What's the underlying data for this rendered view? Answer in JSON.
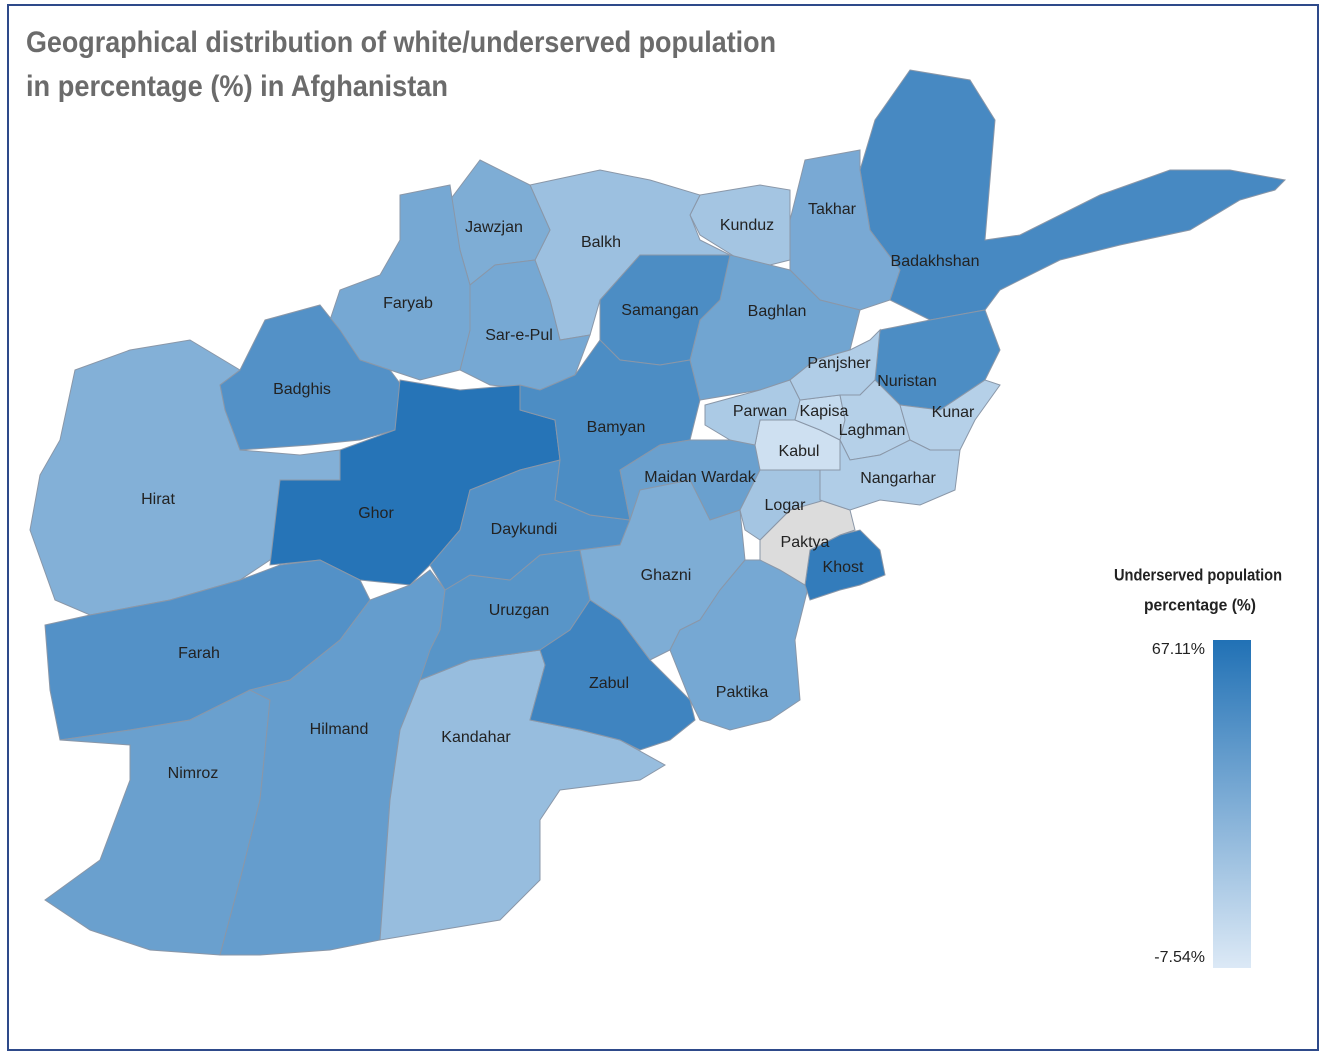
{
  "chart_data": {
    "type": "choropleth",
    "title": [
      "Geographical distribution of white/underserved population",
      "in percentage (%) in Afghanistan"
    ],
    "categories": [
      "Badakhshan",
      "Nuristan",
      "Takhar",
      "Kunduz",
      "Baghlan",
      "Balkh",
      "Jawzjan",
      "Samangan",
      "Sar-e-Pul",
      "Faryab",
      "Badghis",
      "Hirat",
      "Ghor",
      "Farah",
      "Nimroz",
      "Hilmand",
      "Kandahar",
      "Uruzgan",
      "Daykundi",
      "Bamyan",
      "Maidan Wardak",
      "Ghazni",
      "Zabul",
      "Paktika",
      "Khost",
      "Paktya",
      "Logar",
      "Kabul",
      "Parwan",
      "Kapisa",
      "Panjsher",
      "Laghman",
      "Kunar",
      "Nangarhar"
    ],
    "values": [
      52,
      50,
      32,
      15,
      35,
      18,
      30,
      50,
      33,
      33,
      47,
      28,
      65,
      47,
      38,
      40,
      20,
      45,
      47,
      50,
      38,
      30,
      55,
      33,
      60,
      null,
      15,
      -2,
      12,
      2,
      10,
      8,
      8,
      10
    ],
    "colorscale": [
      "#dce9f6",
      "#2171b5"
    ],
    "missing_color": "#dcdcdc",
    "legend_title": [
      "Underserved population",
      "percentage (%)"
    ],
    "clim": [
      -7.54,
      67.11
    ],
    "cticks": [
      {
        "value": 67.11,
        "label": "67.11%"
      },
      {
        "value": -7.54,
        "label": "-7.54%"
      }
    ]
  }
}
